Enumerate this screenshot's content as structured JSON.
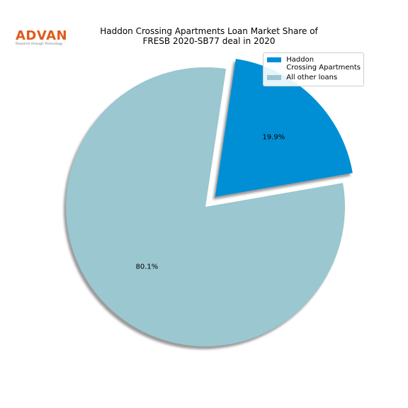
{
  "logo": {
    "name": "ADVAN",
    "tagline": "Research through Technology"
  },
  "chart_data": {
    "type": "pie",
    "title": "Haddon Crossing Apartments Loan Market Share of\nFRESB 2020-SB77 deal in 2020",
    "categories": [
      "Haddon\nCrossing Apartments",
      "All other loans"
    ],
    "values": [
      19.9,
      80.1
    ],
    "value_labels": [
      "19.9%",
      "80.1%"
    ],
    "colors": [
      "#008fd5",
      "#9ac7d0"
    ],
    "explode": [
      0.1,
      0
    ],
    "shadow": true,
    "legend": "upper right"
  }
}
